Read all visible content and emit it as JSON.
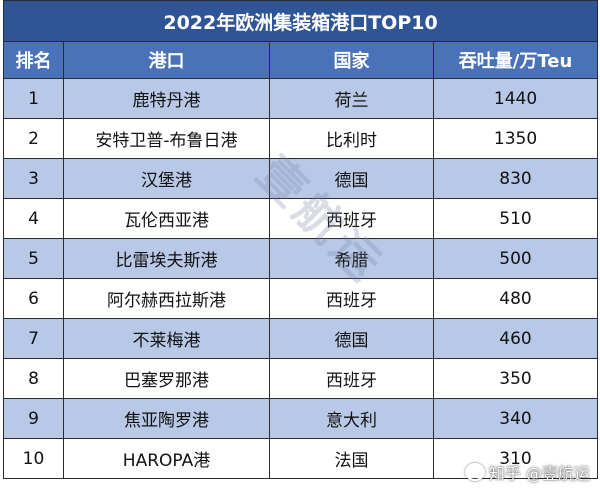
{
  "table": {
    "title": "2022年欧洲集装箱港口TOP10",
    "headers": [
      "排名",
      "港口",
      "国家",
      "吞吐量/万Teu"
    ],
    "rows": [
      {
        "rank": "1",
        "port": "鹿特丹港",
        "country": "荷兰",
        "throughput": "1440"
      },
      {
        "rank": "2",
        "port": "安特卫普-布鲁日港",
        "country": "比利时",
        "throughput": "1350"
      },
      {
        "rank": "3",
        "port": "汉堡港",
        "country": "德国",
        "throughput": "830"
      },
      {
        "rank": "4",
        "port": "瓦伦西亚港",
        "country": "西班牙",
        "throughput": "510"
      },
      {
        "rank": "5",
        "port": "比雷埃夫斯港",
        "country": "希腊",
        "throughput": "500"
      },
      {
        "rank": "6",
        "port": "阿尔赫西拉斯港",
        "country": "西班牙",
        "throughput": "480"
      },
      {
        "rank": "7",
        "port": "不莱梅港",
        "country": "德国",
        "throughput": "460"
      },
      {
        "rank": "8",
        "port": "巴塞罗那港",
        "country": "西班牙",
        "throughput": "350"
      },
      {
        "rank": "9",
        "port": "焦亚陶罗港",
        "country": "意大利",
        "throughput": "340"
      },
      {
        "rank": "10",
        "port": "HAROPA港",
        "country": "法国",
        "throughput": "310"
      }
    ]
  },
  "watermark": {
    "diagonal": "壹航运",
    "corner": "知乎 @壹航运"
  },
  "colors": {
    "title_bg": "#2f5597",
    "header_bg": "#4a72b8",
    "band_bg": "#b7c9e6"
  }
}
